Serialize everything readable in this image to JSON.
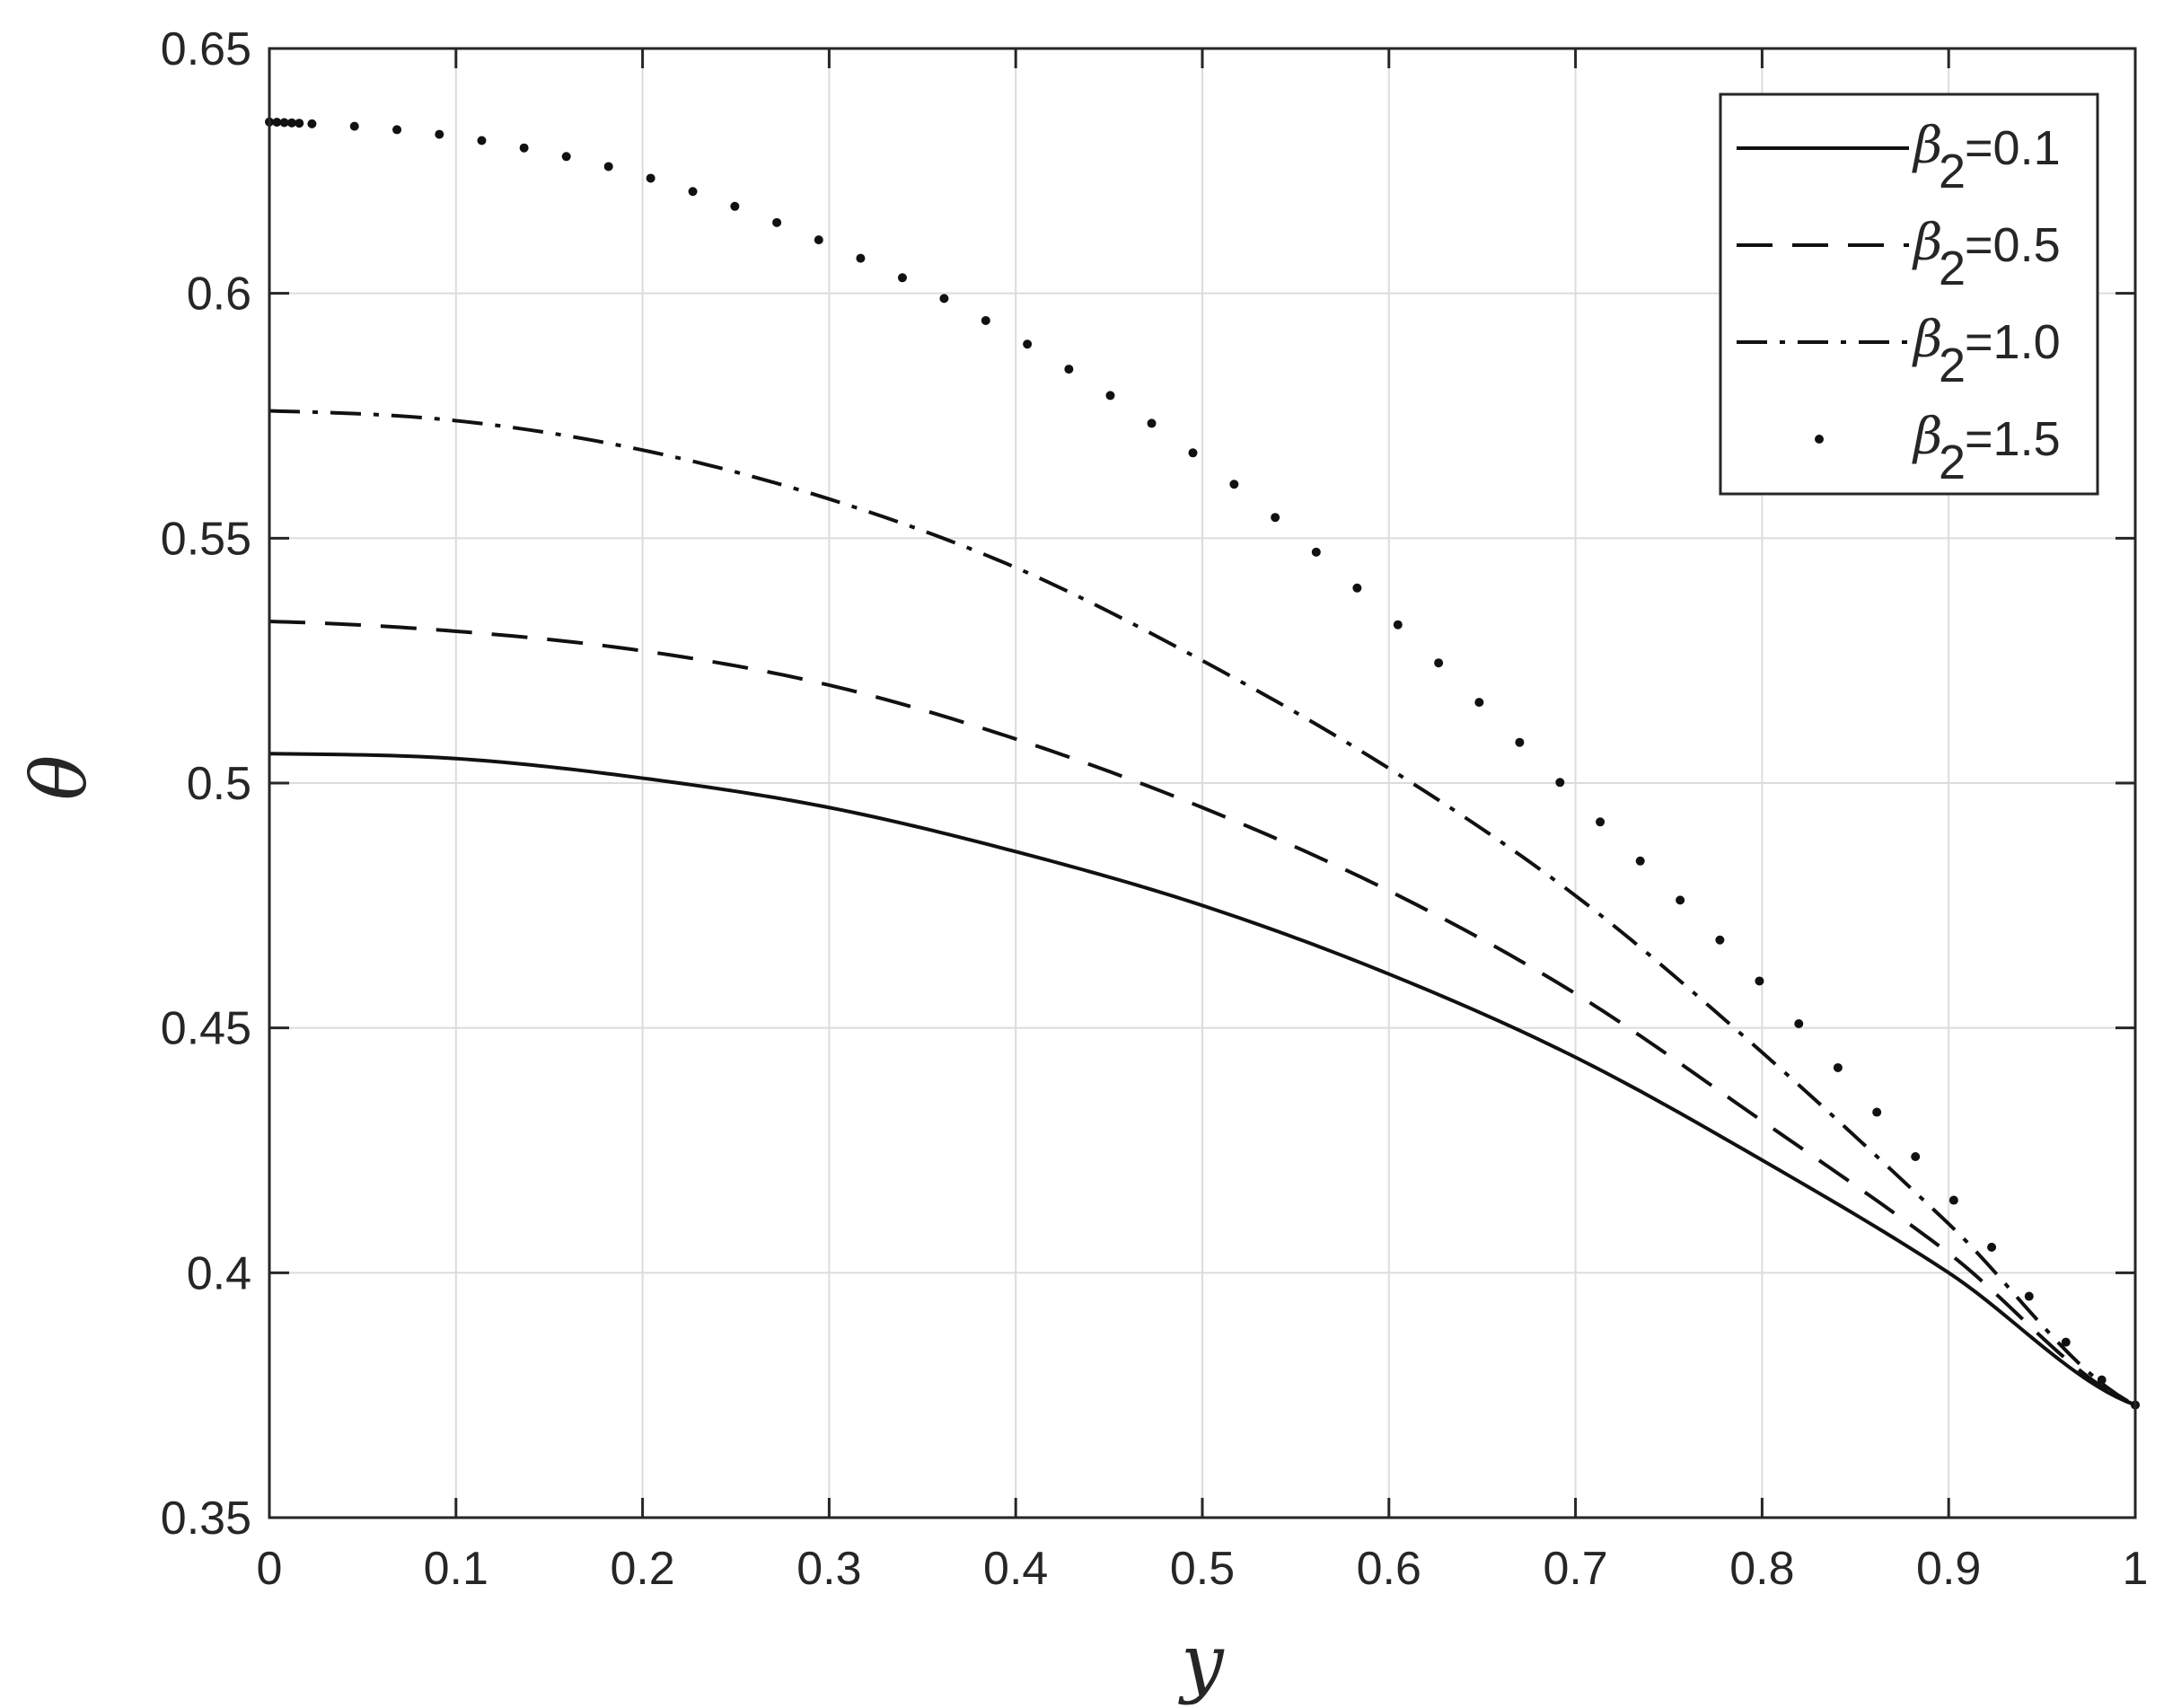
{
  "chart_data": {
    "type": "line",
    "title": "",
    "xlabel": "y",
    "ylabel": "θ",
    "xlim": [
      0,
      1
    ],
    "ylim": [
      0.35,
      0.65
    ],
    "xticks": [
      0,
      0.1,
      0.2,
      0.3,
      0.4,
      0.5,
      0.6,
      0.7,
      0.8,
      0.9,
      1
    ],
    "xtick_labels": [
      "0",
      "0.1",
      "0.2",
      "0.3",
      "0.4",
      "0.5",
      "0.6",
      "0.7",
      "0.8",
      "0.9",
      "1"
    ],
    "yticks": [
      0.35,
      0.4,
      0.45,
      0.5,
      0.55,
      0.6,
      0.65
    ],
    "ytick_labels": [
      "0.35",
      "0.4",
      "0.45",
      "0.5",
      "0.55",
      "0.6",
      "0.65"
    ],
    "grid": true,
    "legend_position": "top-right",
    "x": [
      0,
      0.1,
      0.2,
      0.3,
      0.4,
      0.5,
      0.6,
      0.7,
      0.8,
      0.9,
      1.0
    ],
    "series": [
      {
        "name": "β2=0.1",
        "legend_symbol": "β",
        "legend_sub": "2",
        "legend_value": "=0.1",
        "style": "solid",
        "values": [
          0.506,
          0.505,
          0.501,
          0.495,
          0.486,
          0.475,
          0.461,
          0.444,
          0.423,
          0.4,
          0.373
        ]
      },
      {
        "name": "β2=0.5",
        "legend_symbol": "β",
        "legend_sub": "2",
        "legend_value": "=0.5",
        "style": "dashed",
        "values": [
          0.533,
          0.531,
          0.527,
          0.52,
          0.509,
          0.495,
          0.478,
          0.457,
          0.431,
          0.404,
          0.373
        ]
      },
      {
        "name": "β2=1.0",
        "legend_symbol": "β",
        "legend_sub": "2",
        "legend_value": "=1.0",
        "style": "dashdot",
        "values": [
          0.576,
          0.574,
          0.568,
          0.558,
          0.544,
          0.525,
          0.503,
          0.477,
          0.445,
          0.41,
          0.373
        ]
      },
      {
        "name": "β2=1.5",
        "legend_symbol": "β",
        "legend_sub": "2",
        "legend_value": "=1.5",
        "style": "dotted",
        "values": [
          0.635,
          0.632,
          0.624,
          0.61,
          0.591,
          0.566,
          0.534,
          0.497,
          0.459,
          0.416,
          0.373
        ]
      }
    ]
  }
}
